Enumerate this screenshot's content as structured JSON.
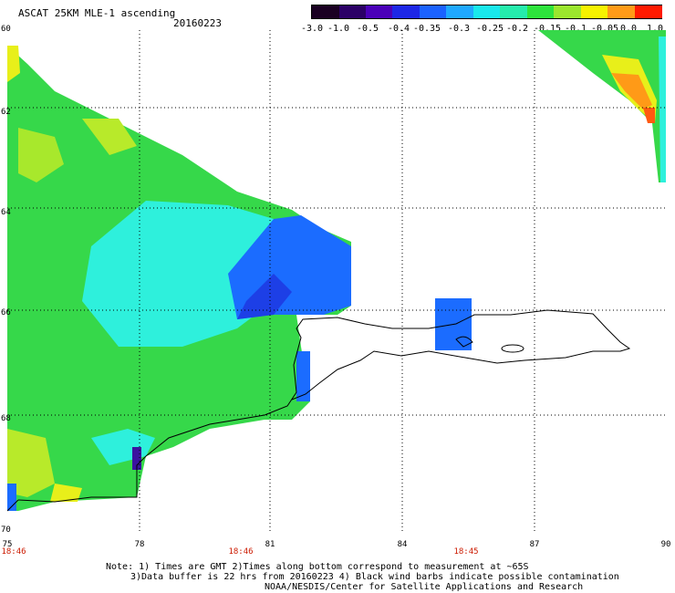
{
  "header": {
    "title": "ASCAT 25KM MLE-1 ascending",
    "date": "20160223"
  },
  "colorbar": {
    "labels": [
      "-3.0",
      "-1.0",
      "-0.5",
      "-0.4",
      "-0.35",
      "-0.3",
      "-0.25",
      "-0.2",
      "-0.15",
      "-0.1",
      "-0.05",
      "0.0",
      "1.0"
    ],
    "colors": [
      "#1a0022",
      "#2b0066",
      "#4a00b8",
      "#1d27e6",
      "#1b62ff",
      "#1fa8ff",
      "#19e8ec",
      "#25ecac",
      "#2ee33c",
      "#9be62e",
      "#f6f200",
      "#ff9a17",
      "#ff1a00"
    ]
  },
  "axes": {
    "x_ticks": [
      "75",
      "78",
      "81",
      "84",
      "87",
      "90"
    ],
    "y_ticks": [
      "60",
      "62",
      "64",
      "66",
      "68",
      "70"
    ],
    "x_time_labels": [
      "18:46",
      "18:46",
      "18:45"
    ]
  },
  "notes": {
    "line1": "Note: 1) Times are GMT 2)Times along bottom correspond to measurement at ~65S",
    "line2": "3)Data buffer is 22 hrs from 20160223 4) Black wind barbs indicate possible contamination",
    "line3": "NOAA/NESDIS/Center for Satellite Applications and Research"
  },
  "map_colors": {
    "swath_green": "#36d84a",
    "swath_cyan": "#2ef0dc",
    "swath_blue": "#1b6cff",
    "swath_yellow": "#e8ef1a",
    "swath_orange": "#ff9a17",
    "land_outline": "#000000",
    "grid": "#000000"
  }
}
